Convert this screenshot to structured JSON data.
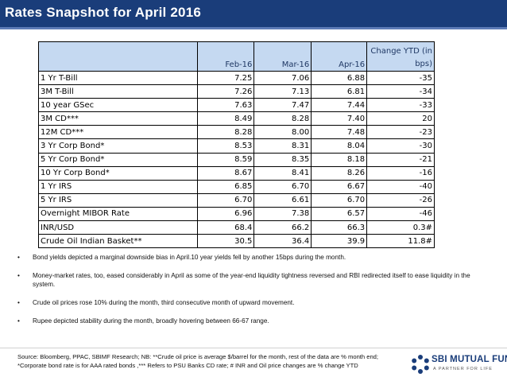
{
  "header": {
    "title": "Rates Snapshot for April 2016"
  },
  "table": {
    "columns": [
      "",
      "Feb-16",
      "Mar-16",
      "Apr-16",
      "Change YTD (in bps)"
    ],
    "rows": [
      {
        "label": "1 Yr T-Bill",
        "feb": "7.25",
        "mar": "7.06",
        "apr": "6.88",
        "change": "-35"
      },
      {
        "label": "3M T-Bill",
        "feb": "7.26",
        "mar": "7.13",
        "apr": "6.81",
        "change": "-34"
      },
      {
        "label": "10 year GSec",
        "feb": "7.63",
        "mar": "7.47",
        "apr": "7.44",
        "change": "-33"
      },
      {
        "label": "3M CD***",
        "feb": "8.49",
        "mar": "8.28",
        "apr": "7.40",
        "change": "20"
      },
      {
        "label": "12M CD***",
        "feb": "8.28",
        "mar": "8.00",
        "apr": "7.48",
        "change": "-23"
      },
      {
        "label": "3 Yr Corp Bond*",
        "feb": "8.53",
        "mar": "8.31",
        "apr": "8.04",
        "change": "-30"
      },
      {
        "label": "5 Yr Corp Bond*",
        "feb": "8.59",
        "mar": "8.35",
        "apr": "8.18",
        "change": "-21"
      },
      {
        "label": "10 Yr Corp Bond*",
        "feb": "8.67",
        "mar": "8.41",
        "apr": "8.26",
        "change": "-16"
      },
      {
        "label": "1 Yr IRS",
        "feb": "6.85",
        "mar": "6.70",
        "apr": "6.67",
        "change": "-40"
      },
      {
        "label": "5 Yr IRS",
        "feb": "6.70",
        "mar": "6.61",
        "apr": "6.70",
        "change": "-26"
      },
      {
        "label": "Overnight MIBOR Rate",
        "feb": "6.96",
        "mar": "7.38",
        "apr": "6.57",
        "change": "-46"
      },
      {
        "label": "INR/USD",
        "feb": "68.4",
        "mar": "66.2",
        "apr": "66.3",
        "change": "0.3#"
      },
      {
        "label": "Crude Oil Indian Basket**",
        "feb": "30.5",
        "mar": "36.4",
        "apr": "39.9",
        "change": "11.8#"
      }
    ]
  },
  "bullets": [
    "Bond yields depicted a marginal downside bias in April.10 year yields fell by another 15bps during the month.",
    "Money-market rates, too, eased considerably in April as some of the year-end liquidity tightness reversed and RBI redirected itself to ease liquidity in the system.",
    "Crude oil prices rose 10% during the month, third consecutive month of upward movement.",
    "Rupee depicted stability during the month, broadly hovering between 66-67 range."
  ],
  "footer": {
    "source": "Source: Bloomberg, PPAC, SBIMF Research; NB: **Crude oil price is average $/barrel for the month, rest of the data are % month end; *Corporate bond rate is for AAA rated bonds ,*** Refers to PSU Banks CD rate; # INR and Oil price changes are % change YTD",
    "logo_name": "SBI MUTUAL FUND",
    "logo_tagline": "A PARTNER FOR LIFE"
  },
  "colors": {
    "title_bar": "#1a3d7a",
    "table_header": "#c5d9f1",
    "logo_blue": "#1a3d7a"
  }
}
